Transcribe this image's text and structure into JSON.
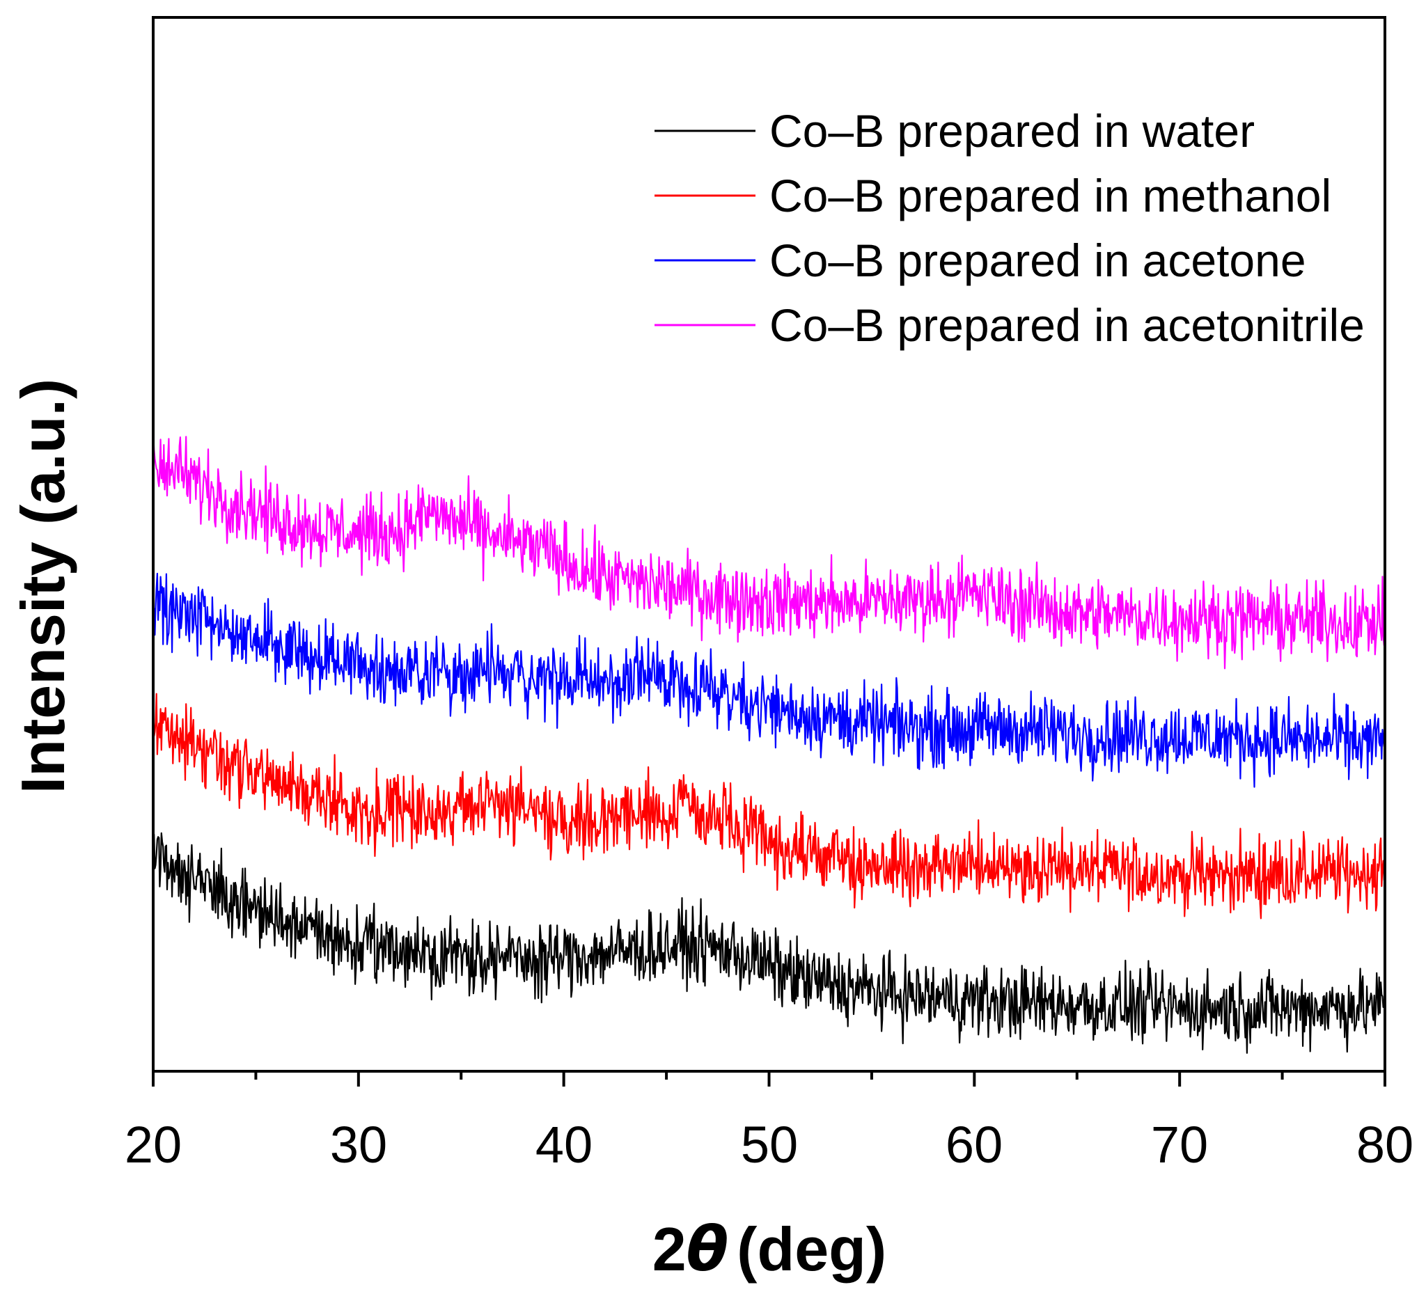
{
  "chart_data": {
    "type": "line",
    "title": "",
    "xlabel": {
      "prefix": "2",
      "symbol": "θ",
      "suffix": "(deg)"
    },
    "ylabel": "Intensity (a.u.)",
    "xlim": [
      20,
      80
    ],
    "ylim": [
      0,
      100
    ],
    "x_ticks": [
      "20",
      "30",
      "40",
      "50",
      "60",
      "70",
      "80"
    ],
    "y_ticks": [],
    "grid": false,
    "legend_position": "top-right",
    "series": [
      {
        "name": "Co–B prepared in water",
        "color": "#000000",
        "noise": 2.4,
        "points": [
          [
            20,
            21
          ],
          [
            21,
            19.5
          ],
          [
            22,
            18.5
          ],
          [
            24,
            16
          ],
          [
            26,
            14.5
          ],
          [
            28,
            13
          ],
          [
            30,
            12
          ],
          [
            32,
            11.5
          ],
          [
            35,
            11
          ],
          [
            38,
            10.6
          ],
          [
            41,
            11
          ],
          [
            44,
            11.6
          ],
          [
            46,
            12
          ],
          [
            48,
            11.5
          ],
          [
            50,
            10
          ],
          [
            52,
            8.6
          ],
          [
            55,
            7.6
          ],
          [
            58,
            7
          ],
          [
            61,
            6.6
          ],
          [
            64,
            6.4
          ],
          [
            70,
            6
          ],
          [
            75,
            6
          ],
          [
            80,
            6.2
          ]
        ]
      },
      {
        "name": "Co–B prepared in methanol",
        "color": "#ff0000",
        "noise": 2.4,
        "points": [
          [
            20,
            33
          ],
          [
            22,
            31
          ],
          [
            24,
            29
          ],
          [
            26,
            27.5
          ],
          [
            28,
            26
          ],
          [
            30,
            25
          ],
          [
            32,
            24.5
          ],
          [
            34,
            25
          ],
          [
            36,
            25.5
          ],
          [
            38,
            25
          ],
          [
            40,
            24
          ],
          [
            42,
            24
          ],
          [
            44,
            24.6
          ],
          [
            46,
            25
          ],
          [
            48,
            23.5
          ],
          [
            50,
            21.5
          ],
          [
            52,
            20.5
          ],
          [
            55,
            19.5
          ],
          [
            58,
            19.3
          ],
          [
            61,
            19.6
          ],
          [
            64,
            19.3
          ],
          [
            68,
            18.8
          ],
          [
            72,
            18.6
          ],
          [
            76,
            18.7
          ],
          [
            80,
            19
          ]
        ]
      },
      {
        "name": "Co–B prepared in acetone",
        "color": "#0000ff",
        "noise": 2.4,
        "points": [
          [
            20,
            44
          ],
          [
            22,
            43
          ],
          [
            24,
            41.5
          ],
          [
            26,
            40.5
          ],
          [
            28,
            39.5
          ],
          [
            30,
            38.5
          ],
          [
            32,
            38
          ],
          [
            35,
            38
          ],
          [
            38,
            37.5
          ],
          [
            40,
            37
          ],
          [
            43,
            37
          ],
          [
            45,
            37.6
          ],
          [
            47,
            36.5
          ],
          [
            50,
            34.5
          ],
          [
            53,
            33.5
          ],
          [
            56,
            32.7
          ],
          [
            59,
            32.5
          ],
          [
            62,
            32.5
          ],
          [
            65,
            32
          ],
          [
            70,
            31.8
          ],
          [
            75,
            31.5
          ],
          [
            80,
            31.2
          ]
        ]
      },
      {
        "name": "Co–B prepared in acetonitrile",
        "color": "#ff00ff",
        "noise": 2.4,
        "points": [
          [
            20,
            58
          ],
          [
            22,
            56
          ],
          [
            24,
            54
          ],
          [
            26,
            52.5
          ],
          [
            28,
            51.5
          ],
          [
            30,
            51
          ],
          [
            32,
            51.3
          ],
          [
            33.5,
            53
          ],
          [
            35,
            52
          ],
          [
            37,
            50.5
          ],
          [
            39,
            49.5
          ],
          [
            41,
            47.5
          ],
          [
            43,
            46.5
          ],
          [
            45,
            46
          ],
          [
            48,
            45
          ],
          [
            51,
            44.5
          ],
          [
            54,
            44.5
          ],
          [
            57,
            44.8
          ],
          [
            60,
            45.3
          ],
          [
            62,
            44.5
          ],
          [
            65,
            43.5
          ],
          [
            70,
            43
          ],
          [
            75,
            42.8
          ],
          [
            80,
            42.5
          ]
        ]
      }
    ]
  }
}
